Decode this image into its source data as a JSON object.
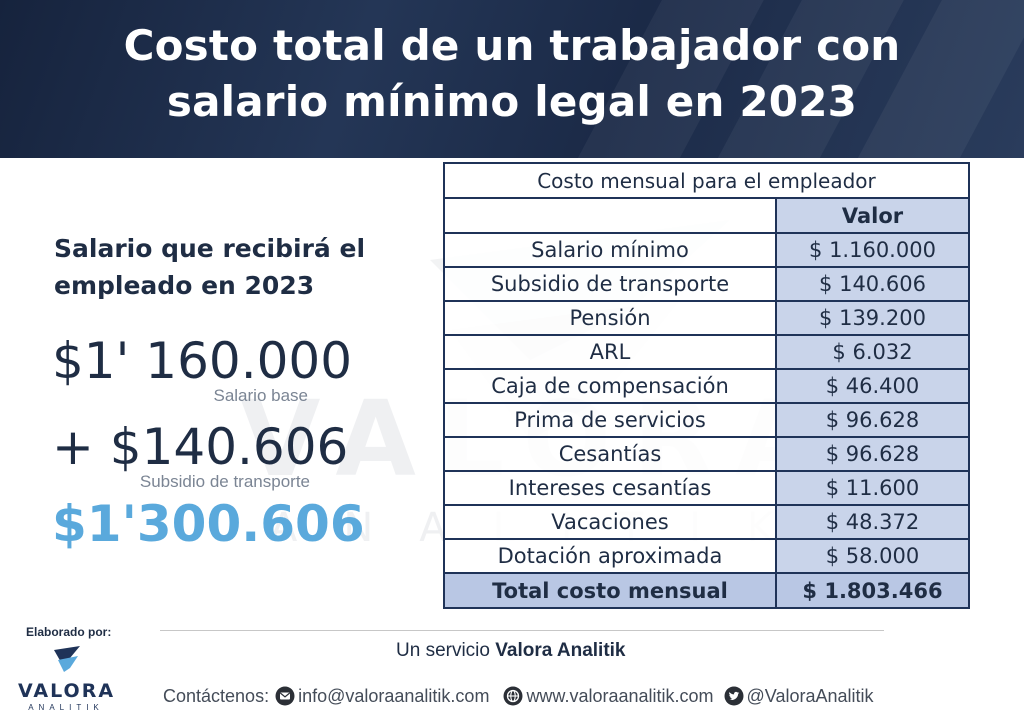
{
  "header": {
    "title_line1": "Costo total de un trabajador con",
    "title_line2": "salario mínimo legal en 2023"
  },
  "watermark": {
    "brand": "VALORA",
    "sub": "ANALITIK"
  },
  "left": {
    "title": "Salario que recibirá el empleado en 2023",
    "salary": "$1' 160.000",
    "salary_caption": "Salario base",
    "transport": "+ $140.606",
    "transport_caption": "Subsidio de transporte",
    "total": "$1'300.606"
  },
  "table": {
    "caption": "Costo mensual para el empleador",
    "value_header": "Valor",
    "rows": [
      {
        "label": "Salario mínimo",
        "value": "$ 1.160.000"
      },
      {
        "label": "Subsidio de transporte",
        "value": "$ 140.606"
      },
      {
        "label": "Pensión",
        "value": "$ 139.200"
      },
      {
        "label": "ARL",
        "value": "$ 6.032"
      },
      {
        "label": "Caja de compensación",
        "value": "$ 46.400"
      },
      {
        "label": "Prima de servicios",
        "value": "$ 96.628"
      },
      {
        "label": "Cesantías",
        "value": "$ 96.628"
      },
      {
        "label": "Intereses cesantías",
        "value": "$ 11.600"
      },
      {
        "label": "Vacaciones",
        "value": "$ 48.372"
      },
      {
        "label": "Dotación aproximada",
        "value": "$ 58.000"
      }
    ],
    "total_label": "Total costo mensual",
    "total_value": "$ 1.803.466"
  },
  "footer": {
    "elaborado": "Elaborado por:",
    "logo_text": "VALORA",
    "logo_sub": "ANALITIK",
    "servicio_prefix": "Un servicio",
    "servicio_brand": "Valora Analitik",
    "contact_label": "Contáctenos:",
    "email": "info@valoraanalitik.com",
    "website": "www.valoraanalitik.com",
    "twitter": "@ValoraAnalitik"
  },
  "colors": {
    "navy": "#1f3358",
    "accent_blue": "#5aa9dc",
    "value_cell": "#c9d4ea"
  }
}
